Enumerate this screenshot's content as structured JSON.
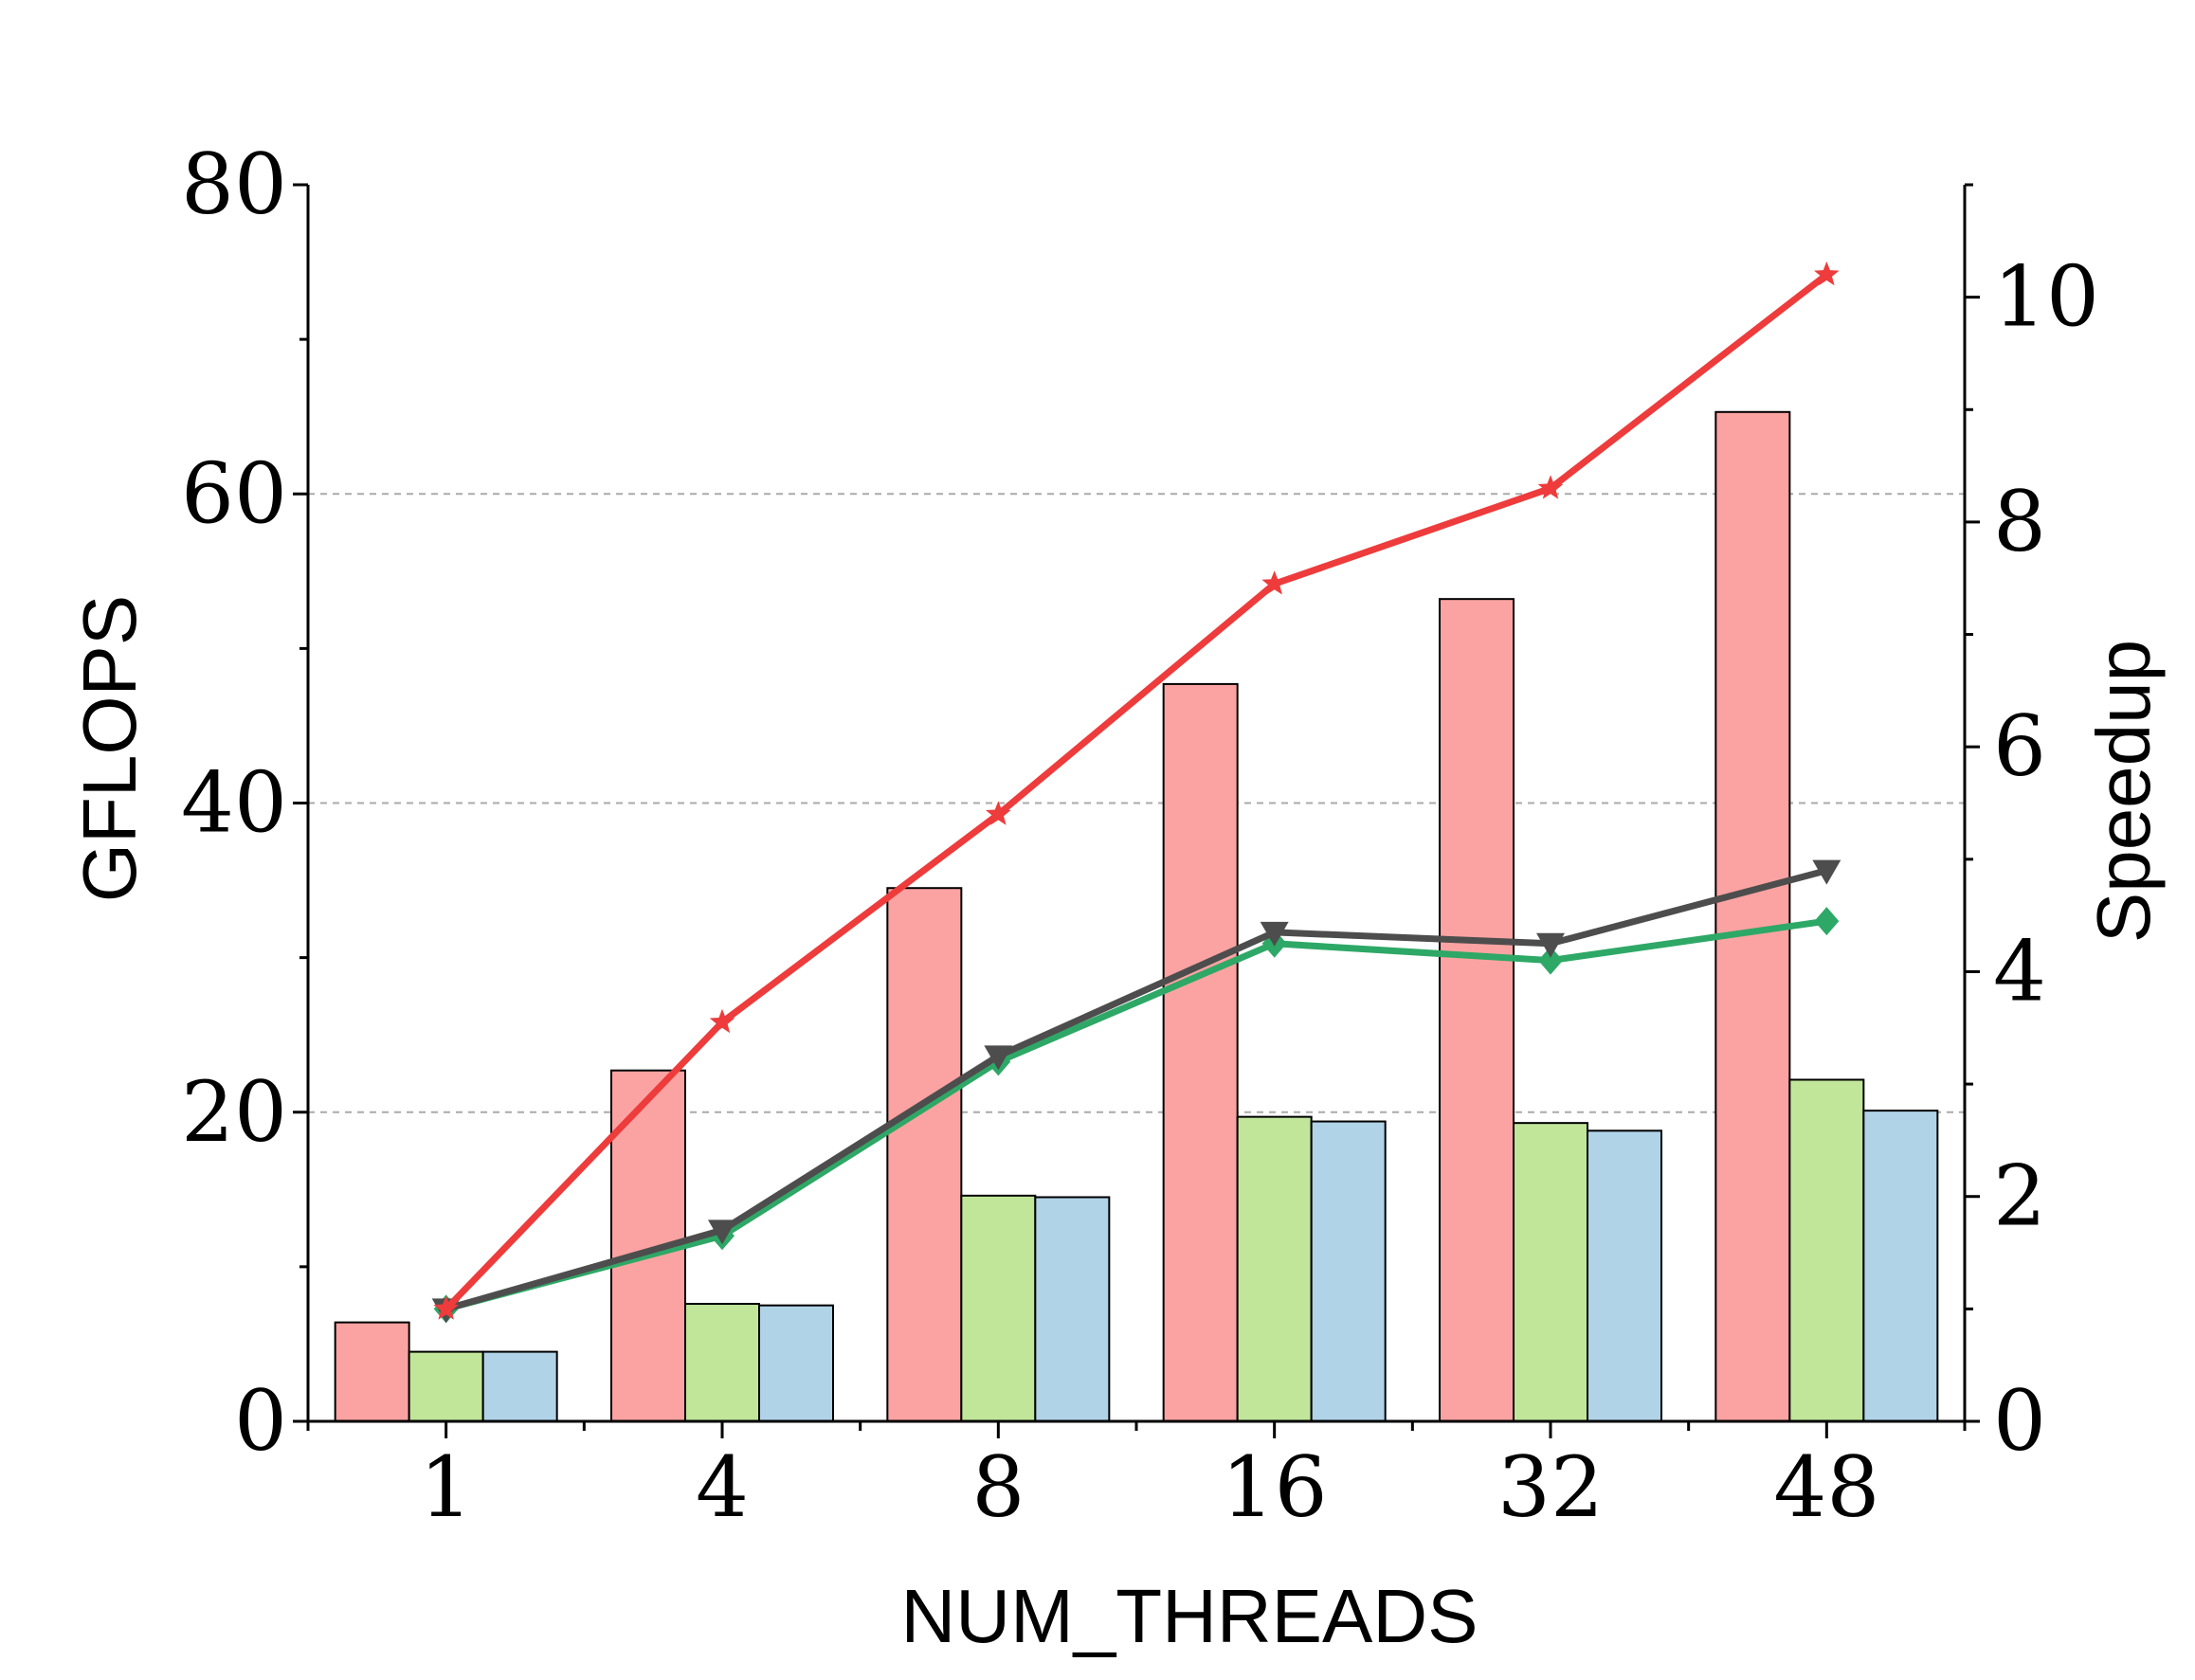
{
  "chart_data": {
    "type": "bar",
    "title": "",
    "xlabel": "NUM_THREADS",
    "ylabel": "GFLOPS",
    "ylabel_right": "Speedup",
    "categories": [
      "1",
      "4",
      "8",
      "16",
      "32",
      "48"
    ],
    "ylim": [
      0,
      80
    ],
    "ylim_right": [
      0,
      11
    ],
    "yticks": [
      "0",
      "20",
      "40",
      "60",
      "80"
    ],
    "yticks_right": [
      "0",
      "2",
      "4",
      "6",
      "8",
      "10"
    ],
    "grid": "horizontal dashed at 20, 40, 60",
    "bar_series": [
      {
        "color": "#fba3a2",
        "values": [
          6.4,
          22.7,
          34.5,
          47.7,
          53.2,
          65.3
        ]
      },
      {
        "color": "#c1e69a",
        "values": [
          4.5,
          7.6,
          14.6,
          19.7,
          19.3,
          22.1
        ]
      },
      {
        "color": "#b0d3e8",
        "values": [
          4.5,
          7.5,
          14.5,
          19.4,
          18.8,
          20.1
        ]
      }
    ],
    "line_series": [
      {
        "color": "#ee3b3b",
        "marker": "star",
        "values": [
          1.0,
          3.55,
          5.4,
          7.45,
          8.3,
          10.2
        ]
      },
      {
        "color": "#4d4d4d",
        "marker": "triangle-down",
        "values": [
          1.0,
          1.7,
          3.25,
          4.35,
          4.25,
          4.9
        ]
      },
      {
        "color": "#2ea866",
        "marker": "diamond",
        "values": [
          1.0,
          1.65,
          3.2,
          4.25,
          4.1,
          4.45
        ]
      }
    ]
  }
}
